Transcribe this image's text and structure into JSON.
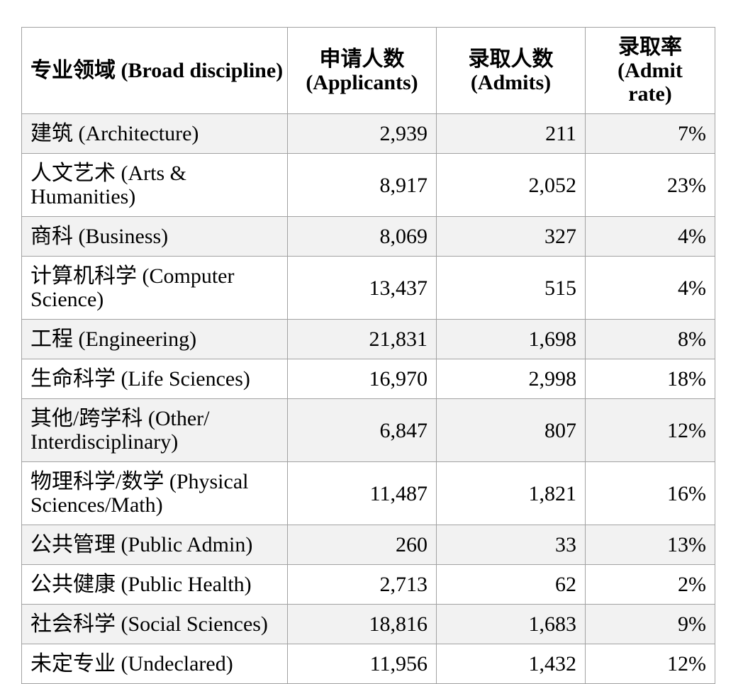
{
  "colors": {
    "background": "#ffffff",
    "row_alt_bg": "#f2f2f2",
    "border": "#a2a2a2",
    "text": "#000000"
  },
  "table": {
    "columns": [
      {
        "key": "discipline",
        "label": "专业领域 (Broad discipline)"
      },
      {
        "key": "applicants",
        "label": "申请人数\n(Applicants)"
      },
      {
        "key": "admits",
        "label": "录取人数\n(Admits)"
      },
      {
        "key": "rate",
        "label": "录取率\n(Admit rate)"
      }
    ],
    "rows": [
      {
        "discipline": "建筑 (Architecture)",
        "applicants": "2,939",
        "admits": "211",
        "rate": "7%"
      },
      {
        "discipline": "人文艺术 (Arts &\nHumanities)",
        "applicants": "8,917",
        "admits": "2,052",
        "rate": "23%"
      },
      {
        "discipline": "商科 (Business)",
        "applicants": "8,069",
        "admits": "327",
        "rate": "4%"
      },
      {
        "discipline": "计算机科学 (Computer\nScience)",
        "applicants": "13,437",
        "admits": "515",
        "rate": "4%"
      },
      {
        "discipline": "工程 (Engineering)",
        "applicants": "21,831",
        "admits": "1,698",
        "rate": "8%"
      },
      {
        "discipline": "生命科学 (Life Sciences)",
        "applicants": "16,970",
        "admits": "2,998",
        "rate": "18%"
      },
      {
        "discipline": "其他/跨学科 (Other/\nInterdisciplinary)",
        "applicants": "6,847",
        "admits": "807",
        "rate": "12%"
      },
      {
        "discipline": "物理科学/数学 (Physical\nSciences/Math)",
        "applicants": "11,487",
        "admits": "1,821",
        "rate": "16%"
      },
      {
        "discipline": "公共管理 (Public Admin)",
        "applicants": "260",
        "admits": "33",
        "rate": "13%"
      },
      {
        "discipline": "公共健康 (Public Health)",
        "applicants": "2,713",
        "admits": "62",
        "rate": "2%"
      },
      {
        "discipline": "社会科学 (Social Sciences)",
        "applicants": "18,816",
        "admits": "1,683",
        "rate": "9%"
      },
      {
        "discipline": "未定专业 (Undeclared)",
        "applicants": "11,956",
        "admits": "1,432",
        "rate": "12%"
      }
    ]
  },
  "chart_data": {
    "type": "table",
    "columns": [
      "专业领域 (Broad discipline)",
      "申请人数 (Applicants)",
      "录取人数 (Admits)",
      "录取率 (Admit rate)"
    ],
    "rows": [
      [
        "建筑 (Architecture)",
        2939,
        211,
        "7%"
      ],
      [
        "人文艺术 (Arts & Humanities)",
        8917,
        2052,
        "23%"
      ],
      [
        "商科 (Business)",
        8069,
        327,
        "4%"
      ],
      [
        "计算机科学 (Computer Science)",
        13437,
        515,
        "4%"
      ],
      [
        "工程 (Engineering)",
        21831,
        1698,
        "8%"
      ],
      [
        "生命科学 (Life Sciences)",
        16970,
        2998,
        "18%"
      ],
      [
        "其他/跨学科 (Other/Interdisciplinary)",
        6847,
        807,
        "12%"
      ],
      [
        "物理科学/数学 (Physical Sciences/Math)",
        11487,
        1821,
        "16%"
      ],
      [
        "公共管理 (Public Admin)",
        260,
        33,
        "13%"
      ],
      [
        "公共健康 (Public Health)",
        2713,
        62,
        "2%"
      ],
      [
        "社会科学 (Social Sciences)",
        18816,
        1683,
        "9%"
      ],
      [
        "未定专业 (Undeclared)",
        11956,
        1432,
        "12%"
      ]
    ]
  }
}
